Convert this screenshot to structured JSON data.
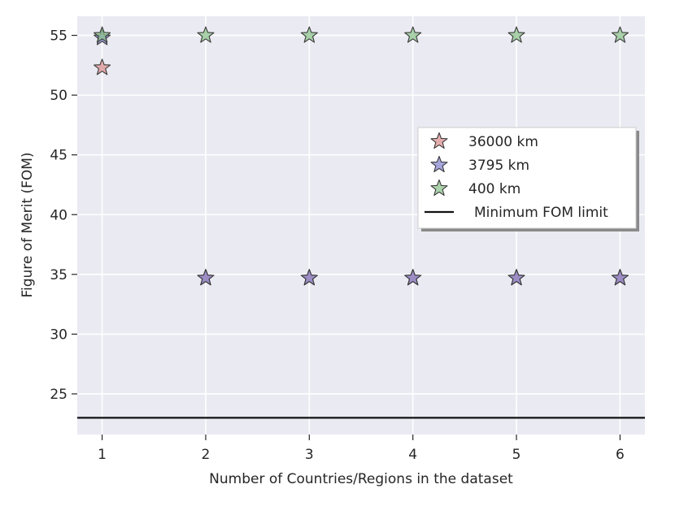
{
  "chart_data": {
    "type": "scatter",
    "title": "",
    "xlabel": "Number of Countries/Regions in the dataset",
    "ylabel": "Figure of Merit (FOM)",
    "xlim": [
      0.76,
      6.24
    ],
    "ylim": [
      21.6,
      56.6
    ],
    "x_ticks": [
      1,
      2,
      3,
      4,
      5,
      6
    ],
    "x_tick_labels": [
      "1",
      "2",
      "3",
      "4",
      "5",
      "6"
    ],
    "y_ticks": [
      25,
      30,
      35,
      40,
      45,
      50,
      55
    ],
    "y_tick_labels": [
      "25",
      "30",
      "35",
      "40",
      "45",
      "50",
      "55"
    ],
    "grid": true,
    "legend_position": "center-right",
    "series": [
      {
        "name": "36000 km",
        "color": "#d98a8a",
        "marker": "star",
        "points": [
          [
            1,
            52.3
          ],
          [
            2,
            34.7
          ],
          [
            3,
            34.7
          ],
          [
            4,
            34.7
          ],
          [
            5,
            34.7
          ],
          [
            6,
            34.7
          ]
        ]
      },
      {
        "name": "3795 km",
        "color": "#8080d0",
        "marker": "star",
        "points": [
          [
            1,
            54.8
          ],
          [
            2,
            34.7
          ],
          [
            3,
            34.7
          ],
          [
            4,
            34.7
          ],
          [
            5,
            34.7
          ],
          [
            6,
            34.7
          ]
        ]
      },
      {
        "name": "400 km",
        "color": "#88c088",
        "marker": "star",
        "points": [
          [
            1,
            55.0
          ],
          [
            2,
            55.0
          ],
          [
            3,
            55.0
          ],
          [
            4,
            55.0
          ],
          [
            5,
            55.0
          ],
          [
            6,
            55.0
          ]
        ]
      }
    ],
    "reference_lines": [
      {
        "name": "Minimum FOM limit",
        "orientation": "horizontal",
        "value": 23.0,
        "color": "#111111"
      }
    ]
  }
}
